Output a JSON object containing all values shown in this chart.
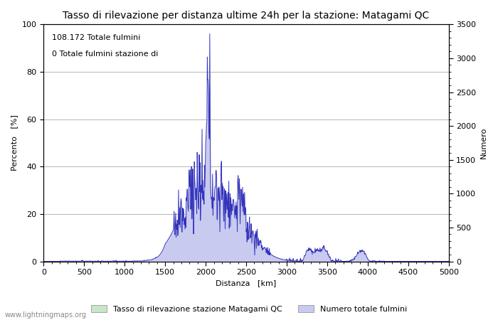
{
  "title": "Tasso di rilevazione per distanza ultime 24h per la stazione: Matagami QC",
  "xlabel": "Distanza   [km]",
  "ylabel_left": "Percento   [%]",
  "ylabel_right": "Numero",
  "annotation_line1": "108.172 Totale fulmini",
  "annotation_line2": "0 Totale fulmini stazione di",
  "xlim": [
    0,
    5000
  ],
  "ylim_left": [
    0,
    100
  ],
  "ylim_right": [
    0,
    3500
  ],
  "xticks": [
    0,
    500,
    1000,
    1500,
    2000,
    2500,
    3000,
    3500,
    4000,
    4500,
    5000
  ],
  "yticks_left": [
    0,
    20,
    40,
    60,
    80,
    100
  ],
  "yticks_right": [
    0,
    500,
    1000,
    1500,
    2000,
    2500,
    3000,
    3500
  ],
  "fill_color_green": "#c8e6c8",
  "fill_color_blue": "#c8caf0",
  "line_color": "#3333bb",
  "bg_color": "#ffffff",
  "grid_color": "#999999",
  "legend_label_green": "Tasso di rilevazione stazione Matagami QC",
  "legend_label_blue": "Numero totale fulmini",
  "watermark": "www.lightningmaps.org",
  "title_fontsize": 10,
  "label_fontsize": 8,
  "tick_fontsize": 8,
  "annotation_fontsize": 8
}
